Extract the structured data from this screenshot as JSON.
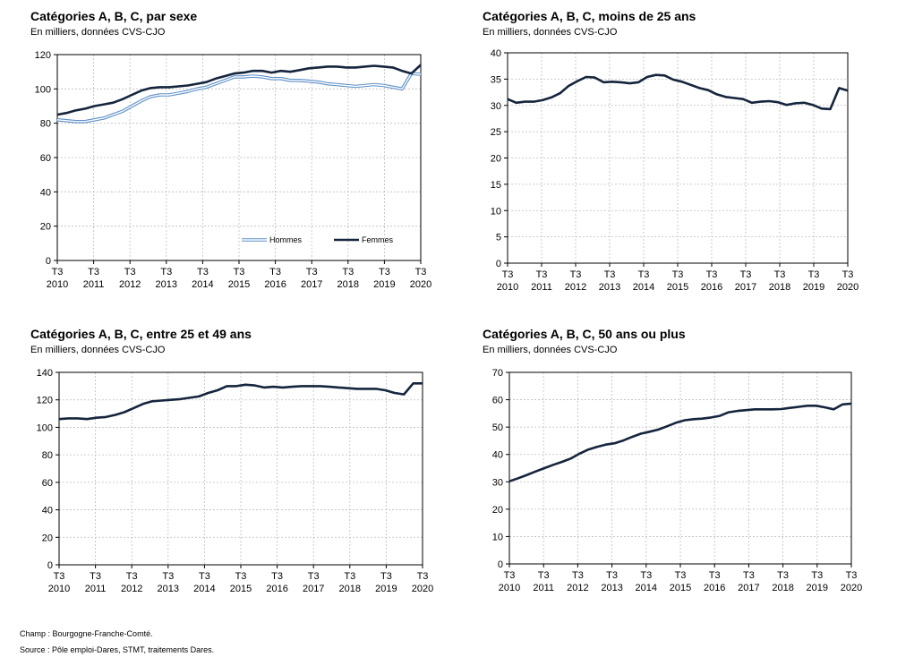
{
  "footer": {
    "champ": "Champ : Bourgogne-Franche-Comté.",
    "source": "Source : Pôle emploi-Dares, STMT, traitements Dares."
  },
  "colors": {
    "femmes": "#15253d",
    "hommes": "#5b8fc7",
    "grid": "#bdbdbd",
    "axis": "#000000"
  },
  "charts": [
    {
      "title": "Catégories A, B, C, par sexe",
      "subtitle": "En milliers, données CVS-CJO"
    },
    {
      "title": "Catégories A, B, C, moins de 25 ans",
      "subtitle": "En milliers, données CVS-CJO"
    },
    {
      "title": "Catégories A, B, C, entre 25 et 49 ans",
      "subtitle": "En milliers, données CVS-CJO"
    },
    {
      "title": "Catégories A, B, C, 50 ans ou plus",
      "subtitle": "En milliers, données CVS-CJO"
    }
  ],
  "chart_data": [
    {
      "type": "line",
      "title": "Catégories A, B, C, par sexe",
      "subtitle": "En milliers, données CVS-CJO",
      "x_ticks": [
        [
          "T3",
          "2010"
        ],
        [
          "T3",
          "2011"
        ],
        [
          "T3",
          "2012"
        ],
        [
          "T3",
          "2013"
        ],
        [
          "T3",
          "2014"
        ],
        [
          "T3",
          "2015"
        ],
        [
          "T3",
          "2016"
        ],
        [
          "T3",
          "2017"
        ],
        [
          "T3",
          "2018"
        ],
        [
          "T3",
          "2019"
        ],
        [
          "T3",
          "2020"
        ]
      ],
      "ylim": [
        0,
        120
      ],
      "yticks": [
        0,
        20,
        40,
        60,
        80,
        100,
        120
      ],
      "grid": true,
      "legend": "bottom-right",
      "series": [
        {
          "name": "Hommes",
          "style": "double",
          "color": "#5b8fc7",
          "values": [
            82,
            81.5,
            81,
            81,
            82,
            83,
            85,
            87,
            90,
            93,
            95.5,
            96.5,
            96.5,
            97.5,
            98.5,
            100,
            101,
            103,
            105,
            107,
            107,
            107.5,
            107,
            106,
            106,
            105,
            105,
            104.5,
            104,
            103,
            102.5,
            102,
            101.5,
            102,
            102.5,
            102,
            101,
            100,
            109,
            108.5
          ]
        },
        {
          "name": "Femmes",
          "style": "solid",
          "color": "#15253d",
          "values": [
            85,
            86,
            87.5,
            88.5,
            90,
            91,
            92,
            94,
            96.5,
            99,
            100.5,
            101,
            101,
            101.5,
            102,
            103,
            104,
            106,
            107.5,
            109,
            109.5,
            110.5,
            110.5,
            109.5,
            110.5,
            110,
            111,
            112,
            112.5,
            113,
            113,
            112.5,
            112.5,
            113,
            113.5,
            113,
            112.5,
            110.5,
            109,
            114
          ]
        }
      ]
    },
    {
      "type": "line",
      "title": "Catégories A, B, C, moins de 25 ans",
      "subtitle": "En milliers, données CVS-CJO",
      "x_ticks": [
        [
          "T3",
          "2010"
        ],
        [
          "T3",
          "2011"
        ],
        [
          "T3",
          "2012"
        ],
        [
          "T3",
          "2013"
        ],
        [
          "T3",
          "2014"
        ],
        [
          "T3",
          "2015"
        ],
        [
          "T3",
          "2016"
        ],
        [
          "T3",
          "2017"
        ],
        [
          "T3",
          "2018"
        ],
        [
          "T3",
          "2019"
        ],
        [
          "T3",
          "2020"
        ]
      ],
      "ylim": [
        0,
        40
      ],
      "yticks": [
        0,
        5,
        10,
        15,
        20,
        25,
        30,
        35,
        40
      ],
      "grid": true,
      "series": [
        {
          "name": "",
          "style": "solid",
          "color": "#15253d",
          "values": [
            31.2,
            30.5,
            30.7,
            30.7,
            31,
            31.5,
            32.3,
            33.7,
            34.6,
            35.4,
            35.3,
            34.4,
            34.5,
            34.4,
            34.2,
            34.4,
            35.4,
            35.8,
            35.7,
            34.9,
            34.5,
            33.9,
            33.3,
            32.9,
            32.1,
            31.6,
            31.4,
            31.2,
            30.5,
            30.7,
            30.8,
            30.6,
            30.1,
            30.4,
            30.5,
            30.1,
            29.4,
            29.3,
            33.3,
            32.8
          ]
        }
      ]
    },
    {
      "type": "line",
      "title": "Catégories A, B, C, entre 25 et 49 ans",
      "subtitle": "En milliers, données CVS-CJO",
      "x_ticks": [
        [
          "T3",
          "2010"
        ],
        [
          "T3",
          "2011"
        ],
        [
          "T3",
          "2012"
        ],
        [
          "T3",
          "2013"
        ],
        [
          "T3",
          "2014"
        ],
        [
          "T3",
          "2015"
        ],
        [
          "T3",
          "2016"
        ],
        [
          "T3",
          "2017"
        ],
        [
          "T3",
          "2018"
        ],
        [
          "T3",
          "2019"
        ],
        [
          "T3",
          "2020"
        ]
      ],
      "ylim": [
        0,
        140
      ],
      "yticks": [
        0,
        20,
        40,
        60,
        80,
        100,
        120,
        140
      ],
      "grid": true,
      "series": [
        {
          "name": "",
          "style": "solid",
          "color": "#15253d",
          "values": [
            106,
            106.5,
            106.5,
            106,
            107,
            107.5,
            109,
            111,
            114,
            117,
            119,
            119.5,
            120,
            120.5,
            121.5,
            122.5,
            125,
            127,
            130,
            130,
            131,
            130.5,
            129,
            129.5,
            129,
            129.5,
            130,
            130,
            130,
            129.5,
            129,
            128.5,
            128,
            128,
            128,
            127,
            125,
            124,
            132,
            132
          ]
        }
      ]
    },
    {
      "type": "line",
      "title": "Catégories A, B, C, 50 ans ou plus",
      "subtitle": "En milliers, données CVS-CJO",
      "x_ticks": [
        [
          "T3",
          "2010"
        ],
        [
          "T3",
          "2011"
        ],
        [
          "T3",
          "2012"
        ],
        [
          "T3",
          "2013"
        ],
        [
          "T3",
          "2014"
        ],
        [
          "T3",
          "2015"
        ],
        [
          "T3",
          "2016"
        ],
        [
          "T3",
          "2017"
        ],
        [
          "T3",
          "2018"
        ],
        [
          "T3",
          "2019"
        ],
        [
          "T3",
          "2020"
        ]
      ],
      "ylim": [
        0,
        70
      ],
      "yticks": [
        0,
        10,
        20,
        30,
        40,
        50,
        60,
        70
      ],
      "grid": true,
      "series": [
        {
          "name": "",
          "style": "solid",
          "color": "#15253d",
          "values": [
            30.2,
            31.3,
            32.5,
            33.8,
            35,
            36.2,
            37.3,
            38.5,
            40.3,
            41.8,
            42.8,
            43.6,
            44.1,
            45.1,
            46.4,
            47.6,
            48.3,
            49.1,
            50.3,
            51.6,
            52.5,
            52.9,
            53.1,
            53.5,
            54.1,
            55.4,
            55.9,
            56.2,
            56.5,
            56.5,
            56.5,
            56.6,
            57,
            57.4,
            57.8,
            57.8,
            57.2,
            56.5,
            58.3,
            58.6
          ]
        }
      ]
    }
  ]
}
